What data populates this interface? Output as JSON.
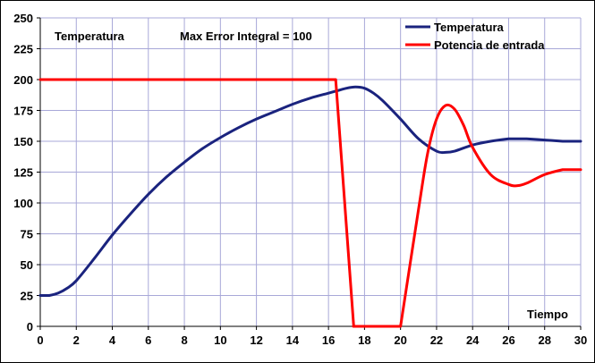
{
  "chart_data": {
    "type": "line",
    "title": "",
    "ylabel_inside": "Temperatura",
    "annotation": "Max Error Integral = 100",
    "xlabel": "Tiempo",
    "xlim": [
      0,
      30
    ],
    "ylim": [
      0,
      250
    ],
    "xticks": [
      0,
      2,
      4,
      6,
      8,
      10,
      12,
      14,
      16,
      18,
      20,
      22,
      24,
      26,
      28,
      30
    ],
    "yticks": [
      0,
      25,
      50,
      75,
      100,
      125,
      150,
      175,
      200,
      225,
      250
    ],
    "grid": true,
    "legend_position": "top-right",
    "series": [
      {
        "name": "Temperatura",
        "color": "#1a237e",
        "x": [
          0,
          0.5,
          1,
          1.5,
          2,
          3,
          4,
          5,
          6,
          7,
          8,
          9,
          10,
          11,
          12,
          13,
          14,
          15,
          16,
          16.5,
          17,
          17.5,
          18,
          18.5,
          19,
          20,
          21,
          22,
          22.5,
          23,
          24,
          25,
          26,
          27,
          28,
          29,
          30
        ],
        "values": [
          25,
          25,
          27,
          31,
          37,
          55,
          74,
          91,
          107,
          121,
          133,
          144,
          153,
          161,
          168,
          174,
          180,
          185,
          189,
          191,
          193,
          194,
          193,
          189,
          183,
          168,
          152,
          142,
          141,
          142,
          147,
          150,
          152,
          152,
          151,
          150,
          150
        ]
      },
      {
        "name": "Potencia de entrada",
        "color": "#ff0000",
        "x": [
          0,
          16.4,
          17.4,
          17.7,
          20,
          21,
          21.5,
          22,
          22.5,
          23,
          23.5,
          24,
          25,
          26,
          26.5,
          27,
          28,
          29,
          30
        ],
        "values": [
          200,
          200,
          0,
          0,
          0,
          95,
          140,
          168,
          179,
          176,
          163,
          145,
          123,
          115,
          114,
          116,
          123,
          127,
          127
        ]
      }
    ]
  }
}
